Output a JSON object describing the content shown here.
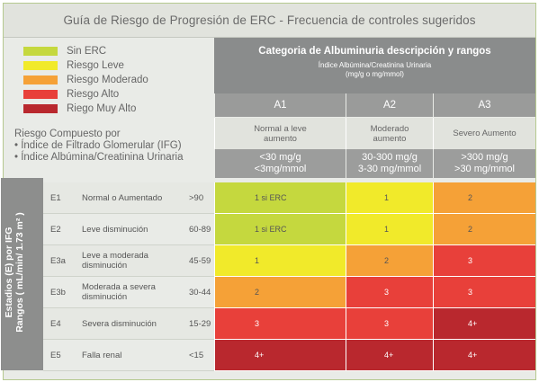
{
  "title": "Guía de Riesgo de Progresión de ERC - Frecuencia de controles sugeridos",
  "legend": [
    {
      "label": "Sin ERC",
      "color": "#c5d83e"
    },
    {
      "label": "Riesgo Leve",
      "color": "#f1ea2a"
    },
    {
      "label": "Riesgo Moderado",
      "color": "#f5a137"
    },
    {
      "label": "Riesgo Alto",
      "color": "#e8403a"
    },
    {
      "label": "Riego Muy Alto",
      "color": "#b9282e"
    }
  ],
  "category": {
    "title": "Categoria de Albuminuria descripción y rangos",
    "subtitle_line1": "Índice Albúmina/Creatinina Urinaria",
    "subtitle_line2": "(mg/g o mg/mmol)"
  },
  "risk_composite": {
    "title": "Riesgo Compuesto por",
    "item1": "• Índice de Filtrado Glomerular (IFG)",
    "item2": "• Índice Albúmina/Creatinina Urinaria"
  },
  "side_label": {
    "line1": "Estadios (E) por IFG",
    "line2": "Rangos ( mL/min/ 1.73 m² )"
  },
  "columns": [
    {
      "code": "A1",
      "desc_line1": "Normal a leve",
      "desc_line2": "aumento",
      "range_line1": "<30 mg/g",
      "range_line2": "<3mg/mmol"
    },
    {
      "code": "A2",
      "desc_line1": "Moderado",
      "desc_line2": "aumento",
      "range_line1": "30-300 mg/g",
      "range_line2": "3-30 mg/mmol"
    },
    {
      "code": "A3",
      "desc_line1": "Severo Aumento",
      "desc_line2": "",
      "range_line1": ">300 mg/g",
      "range_line2": ">30 mg/mmol"
    }
  ],
  "rows": [
    {
      "code": "E1",
      "stage": "Normal o Aumentado",
      "gfr": ">90",
      "cells": [
        {
          "text": "1 si ERC",
          "color": "#c5d83e"
        },
        {
          "text": "1",
          "color": "#f1ea2a"
        },
        {
          "text": "2",
          "color": "#f5a137"
        }
      ]
    },
    {
      "code": "E2",
      "stage": "Leve disminución",
      "gfr": "60-89",
      "cells": [
        {
          "text": "1 si ERC",
          "color": "#c5d83e"
        },
        {
          "text": "1",
          "color": "#f1ea2a"
        },
        {
          "text": "2",
          "color": "#f5a137"
        }
      ]
    },
    {
      "code": "E3a",
      "stage": "Leve a moderada disminución",
      "gfr": "45-59",
      "cells": [
        {
          "text": "1",
          "color": "#f1ea2a"
        },
        {
          "text": "2",
          "color": "#f5a137"
        },
        {
          "text": "3",
          "color": "#e8403a"
        }
      ]
    },
    {
      "code": "E3b",
      "stage": "Moderada a severa disminución",
      "gfr": "30-44",
      "cells": [
        {
          "text": "2",
          "color": "#f5a137"
        },
        {
          "text": "3",
          "color": "#e8403a"
        },
        {
          "text": "3",
          "color": "#e8403a"
        }
      ]
    },
    {
      "code": "E4",
      "stage": "Severa disminución",
      "gfr": "15-29",
      "cells": [
        {
          "text": "3",
          "color": "#e8403a"
        },
        {
          "text": "3",
          "color": "#e8403a"
        },
        {
          "text": "4+",
          "color": "#b9282e"
        }
      ]
    },
    {
      "code": "E5",
      "stage": "Falla renal",
      "gfr": "<15",
      "cells": [
        {
          "text": "4+",
          "color": "#b9282e"
        },
        {
          "text": "4+",
          "color": "#b9282e"
        },
        {
          "text": "4+",
          "color": "#b9282e"
        }
      ]
    }
  ]
}
